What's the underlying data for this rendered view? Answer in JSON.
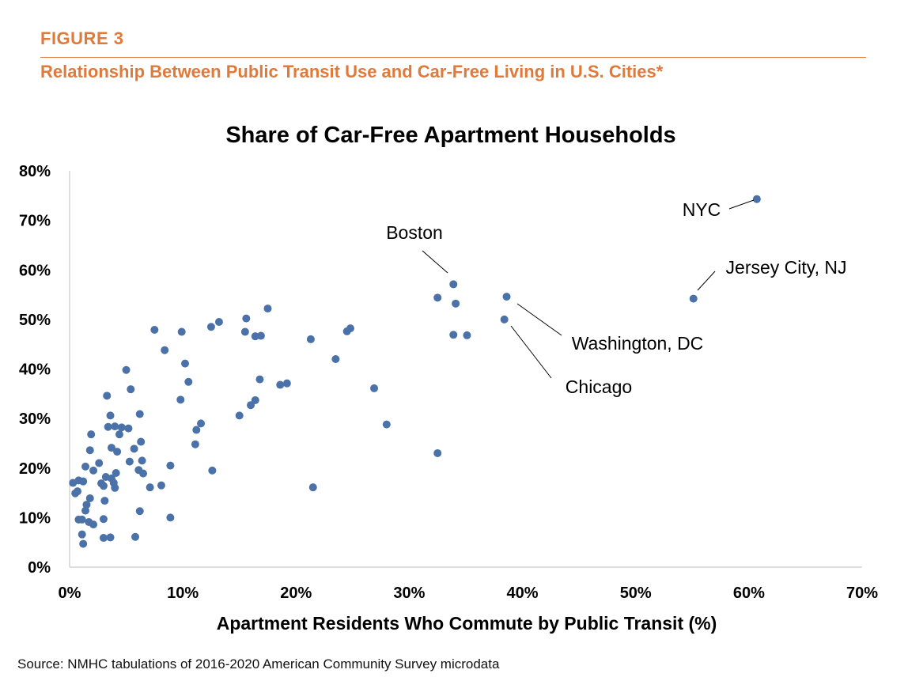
{
  "header": {
    "figure_label": "FIGURE 3",
    "figure_title": "Relationship Between Public Transit Use and Car-Free Living in U.S. Cities*"
  },
  "footer": {
    "source": "Source: NMHC tabulations of 2016-2020 American Community Survey microdata"
  },
  "colors": {
    "accent": "#E07A3A",
    "marker": "#4A72A8",
    "axis": "#bfbfbf"
  },
  "chart_data": {
    "type": "scatter",
    "title": "Share of Car-Free Apartment Households",
    "xlabel": "Apartment Residents Who Commute by Public Transit (%)",
    "ylabel": "",
    "xlim": [
      0,
      70
    ],
    "ylim": [
      0,
      80
    ],
    "xticks": [
      "0%",
      "10%",
      "20%",
      "30%",
      "40%",
      "50%",
      "60%",
      "70%"
    ],
    "yticks": [
      "0%",
      "10%",
      "20%",
      "30%",
      "40%",
      "50%",
      "60%",
      "70%",
      "80%"
    ],
    "grid": false,
    "annotations": [
      {
        "text": "NYC",
        "x": 60.7,
        "y": 74.3
      },
      {
        "text": "Boston",
        "x": 33.9,
        "y": 57.1
      },
      {
        "text": "Jersey City, NJ",
        "x": 55.1,
        "y": 54.2
      },
      {
        "text": "Washington, DC",
        "x": 38.6,
        "y": 54.6
      },
      {
        "text": "Chicago",
        "x": 38.4,
        "y": 50.0
      }
    ],
    "points": [
      [
        60.7,
        74.3
      ],
      [
        55.1,
        54.2
      ],
      [
        33.9,
        57.1
      ],
      [
        32.5,
        54.4
      ],
      [
        34.1,
        53.2
      ],
      [
        38.6,
        54.6
      ],
      [
        38.4,
        50.0
      ],
      [
        33.9,
        46.9
      ],
      [
        35.1,
        46.8
      ],
      [
        32.5,
        23.0
      ],
      [
        17.5,
        52.2
      ],
      [
        15.6,
        50.2
      ],
      [
        13.2,
        49.5
      ],
      [
        12.5,
        48.5
      ],
      [
        15.5,
        47.5
      ],
      [
        16.4,
        46.6
      ],
      [
        16.9,
        46.7
      ],
      [
        24.8,
        48.2
      ],
      [
        24.5,
        47.6
      ],
      [
        21.3,
        46.0
      ],
      [
        23.5,
        42.0
      ],
      [
        26.9,
        36.1
      ],
      [
        28.0,
        28.8
      ],
      [
        21.5,
        16.1
      ],
      [
        18.6,
        36.8
      ],
      [
        19.2,
        37.1
      ],
      [
        16.8,
        37.9
      ],
      [
        16.4,
        33.7
      ],
      [
        16.0,
        32.7
      ],
      [
        15.0,
        30.6
      ],
      [
        12.6,
        19.5
      ],
      [
        7.5,
        47.9
      ],
      [
        9.9,
        47.5
      ],
      [
        8.4,
        43.8
      ],
      [
        10.2,
        41.1
      ],
      [
        10.5,
        37.4
      ],
      [
        9.8,
        33.8
      ],
      [
        11.6,
        29.0
      ],
      [
        11.2,
        27.7
      ],
      [
        11.1,
        24.8
      ],
      [
        5.0,
        39.8
      ],
      [
        5.4,
        35.9
      ],
      [
        3.3,
        34.6
      ],
      [
        6.2,
        30.9
      ],
      [
        3.6,
        30.6
      ],
      [
        3.4,
        28.3
      ],
      [
        4.0,
        28.4
      ],
      [
        4.6,
        28.2
      ],
      [
        5.2,
        28.0
      ],
      [
        4.4,
        26.8
      ],
      [
        6.3,
        25.3
      ],
      [
        1.9,
        26.8
      ],
      [
        3.7,
        24.1
      ],
      [
        5.7,
        23.9
      ],
      [
        4.2,
        23.3
      ],
      [
        1.8,
        23.6
      ],
      [
        6.4,
        21.5
      ],
      [
        5.3,
        21.3
      ],
      [
        2.6,
        21.0
      ],
      [
        1.4,
        20.3
      ],
      [
        8.9,
        20.5
      ],
      [
        2.1,
        19.5
      ],
      [
        4.1,
        19.0
      ],
      [
        6.5,
        18.9
      ],
      [
        6.1,
        19.6
      ],
      [
        3.2,
        18.2
      ],
      [
        3.7,
        17.9
      ],
      [
        3.9,
        17.0
      ],
      [
        2.8,
        16.9
      ],
      [
        3.0,
        16.4
      ],
      [
        4.0,
        16.0
      ],
      [
        7.1,
        16.1
      ],
      [
        8.1,
        16.5
      ],
      [
        0.3,
        17.0
      ],
      [
        1.2,
        17.3
      ],
      [
        0.8,
        17.5
      ],
      [
        0.5,
        14.9
      ],
      [
        0.7,
        15.3
      ],
      [
        1.8,
        13.9
      ],
      [
        3.1,
        13.4
      ],
      [
        1.5,
        12.6
      ],
      [
        1.4,
        11.4
      ],
      [
        6.2,
        11.3
      ],
      [
        0.8,
        9.6
      ],
      [
        1.1,
        9.6
      ],
      [
        1.7,
        9.1
      ],
      [
        2.1,
        8.6
      ],
      [
        3.0,
        9.7
      ],
      [
        8.9,
        10.0
      ],
      [
        1.1,
        6.6
      ],
      [
        3.0,
        5.9
      ],
      [
        3.6,
        6.0
      ],
      [
        5.8,
        6.1
      ],
      [
        1.2,
        4.7
      ]
    ]
  }
}
